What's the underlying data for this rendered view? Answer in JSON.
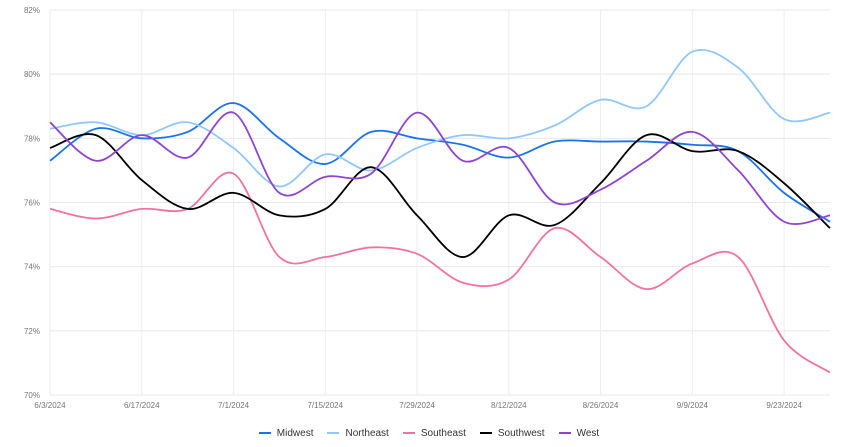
{
  "chart_data": {
    "type": "line",
    "title": "",
    "xlabel": "",
    "ylabel": "",
    "ylim": [
      70,
      82
    ],
    "y_ticks": [
      "70%",
      "72%",
      "74%",
      "76%",
      "78%",
      "80%",
      "82%"
    ],
    "y_tick_values": [
      70,
      72,
      74,
      76,
      78,
      80,
      82
    ],
    "x_ticks": [
      "6/3/2024",
      "6/17/2024",
      "7/1/2024",
      "7/15/2024",
      "7/29/2024",
      "8/12/2024",
      "8/26/2024",
      "9/9/2024",
      "9/23/2024"
    ],
    "x": [
      "6/3/2024",
      "6/10/2024",
      "6/17/2024",
      "6/24/2024",
      "7/1/2024",
      "7/8/2024",
      "7/15/2024",
      "7/22/2024",
      "7/29/2024",
      "8/5/2024",
      "8/12/2024",
      "8/19/2024",
      "8/26/2024",
      "9/2/2024",
      "9/9/2024",
      "9/16/2024",
      "9/23/2024",
      "9/30/2024"
    ],
    "grid": true,
    "legend_position": "bottom",
    "series": [
      {
        "name": "Midwest",
        "color": "#1a73e8",
        "values": [
          77.3,
          78.3,
          78.0,
          78.2,
          79.1,
          78.0,
          77.2,
          78.2,
          78.0,
          77.8,
          77.4,
          77.9,
          77.9,
          77.9,
          77.8,
          77.6,
          76.3,
          75.4
        ]
      },
      {
        "name": "Northeast",
        "color": "#90c8f8",
        "values": [
          78.3,
          78.5,
          78.1,
          78.5,
          77.7,
          76.5,
          77.5,
          77.0,
          77.7,
          78.1,
          78.0,
          78.4,
          79.2,
          79.0,
          80.7,
          80.2,
          78.6,
          78.8
        ]
      },
      {
        "name": "Southeast",
        "color": "#f0739f",
        "values": [
          75.8,
          75.5,
          75.8,
          75.8,
          76.9,
          74.3,
          74.3,
          74.6,
          74.4,
          73.5,
          73.6,
          75.2,
          74.3,
          73.3,
          74.1,
          74.3,
          71.7,
          70.7
        ]
      },
      {
        "name": "Southwest",
        "color": "#000000",
        "values": [
          77.7,
          78.1,
          76.7,
          75.8,
          76.3,
          75.6,
          75.8,
          77.1,
          75.6,
          74.3,
          75.6,
          75.3,
          76.6,
          78.1,
          77.6,
          77.6,
          76.6,
          75.2
        ]
      },
      {
        "name": "West",
        "color": "#8e44ce",
        "values": [
          78.5,
          77.3,
          78.1,
          77.4,
          78.8,
          76.3,
          76.8,
          76.9,
          78.8,
          77.3,
          77.7,
          76.0,
          76.4,
          77.3,
          78.2,
          77.0,
          75.4,
          75.6
        ]
      }
    ]
  }
}
